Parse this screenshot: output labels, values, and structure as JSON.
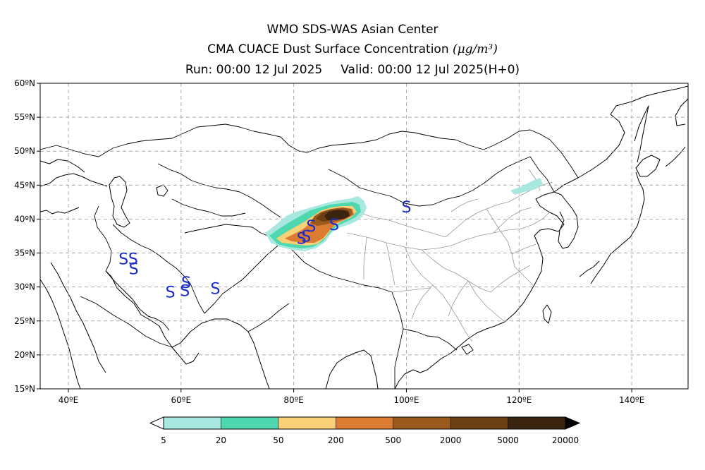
{
  "header": {
    "line1": "WMO SDS-WAS Asian Center",
    "line2_text": "CMA CUACE Dust Surface Concentration",
    "line2_unit": "(μg/m³)",
    "run_label": "Run: 00:00 12 Jul 2025",
    "valid_label": "Valid: 00:00 12 Jul 2025(H+0)"
  },
  "map": {
    "lon_range": [
      35,
      150
    ],
    "lat_range": [
      15,
      60
    ],
    "lat_ticks": [
      15,
      20,
      25,
      30,
      35,
      40,
      45,
      50,
      55,
      60
    ],
    "lat_tick_labels": [
      "15ºN",
      "20ºN",
      "25ºN",
      "30ºN",
      "35ºN",
      "40ºN",
      "45ºN",
      "50ºN",
      "55ºN",
      "60ºN"
    ],
    "lon_ticks": [
      40,
      60,
      80,
      100,
      120,
      140
    ],
    "lon_tick_labels": [
      "40ºE",
      "60ºE",
      "80ºE",
      "100ºE",
      "120ºE",
      "140ºE"
    ],
    "grid": true,
    "coast_color": "#000000",
    "province_color": "#999999",
    "dust_station_color": "#1a2acc",
    "dust_station_symbol": "S",
    "dust_stations": [
      {
        "lon": 49.8,
        "lat": 34.2
      },
      {
        "lon": 51.5,
        "lat": 34.2
      },
      {
        "lon": 51.6,
        "lat": 32.7
      },
      {
        "lon": 58.1,
        "lat": 29.3
      },
      {
        "lon": 60.7,
        "lat": 29.5
      },
      {
        "lon": 60.9,
        "lat": 30.7
      },
      {
        "lon": 66.1,
        "lat": 29.8
      },
      {
        "lon": 81.4,
        "lat": 37.2
      },
      {
        "lon": 82.2,
        "lat": 37.5
      },
      {
        "lon": 83.1,
        "lat": 39.0
      },
      {
        "lon": 87.2,
        "lat": 39.2
      },
      {
        "lon": 100.0,
        "lat": 41.8
      }
    ]
  },
  "legend": {
    "labels": [
      "5",
      "20",
      "50",
      "200",
      "500",
      "2000",
      "5000",
      "20000"
    ],
    "colors": [
      "#a8e8e0",
      "#4fd8b0",
      "#f8d078",
      "#dc7b32",
      "#9a5a1e",
      "#6c3f14",
      "#3a2410"
    ]
  }
}
